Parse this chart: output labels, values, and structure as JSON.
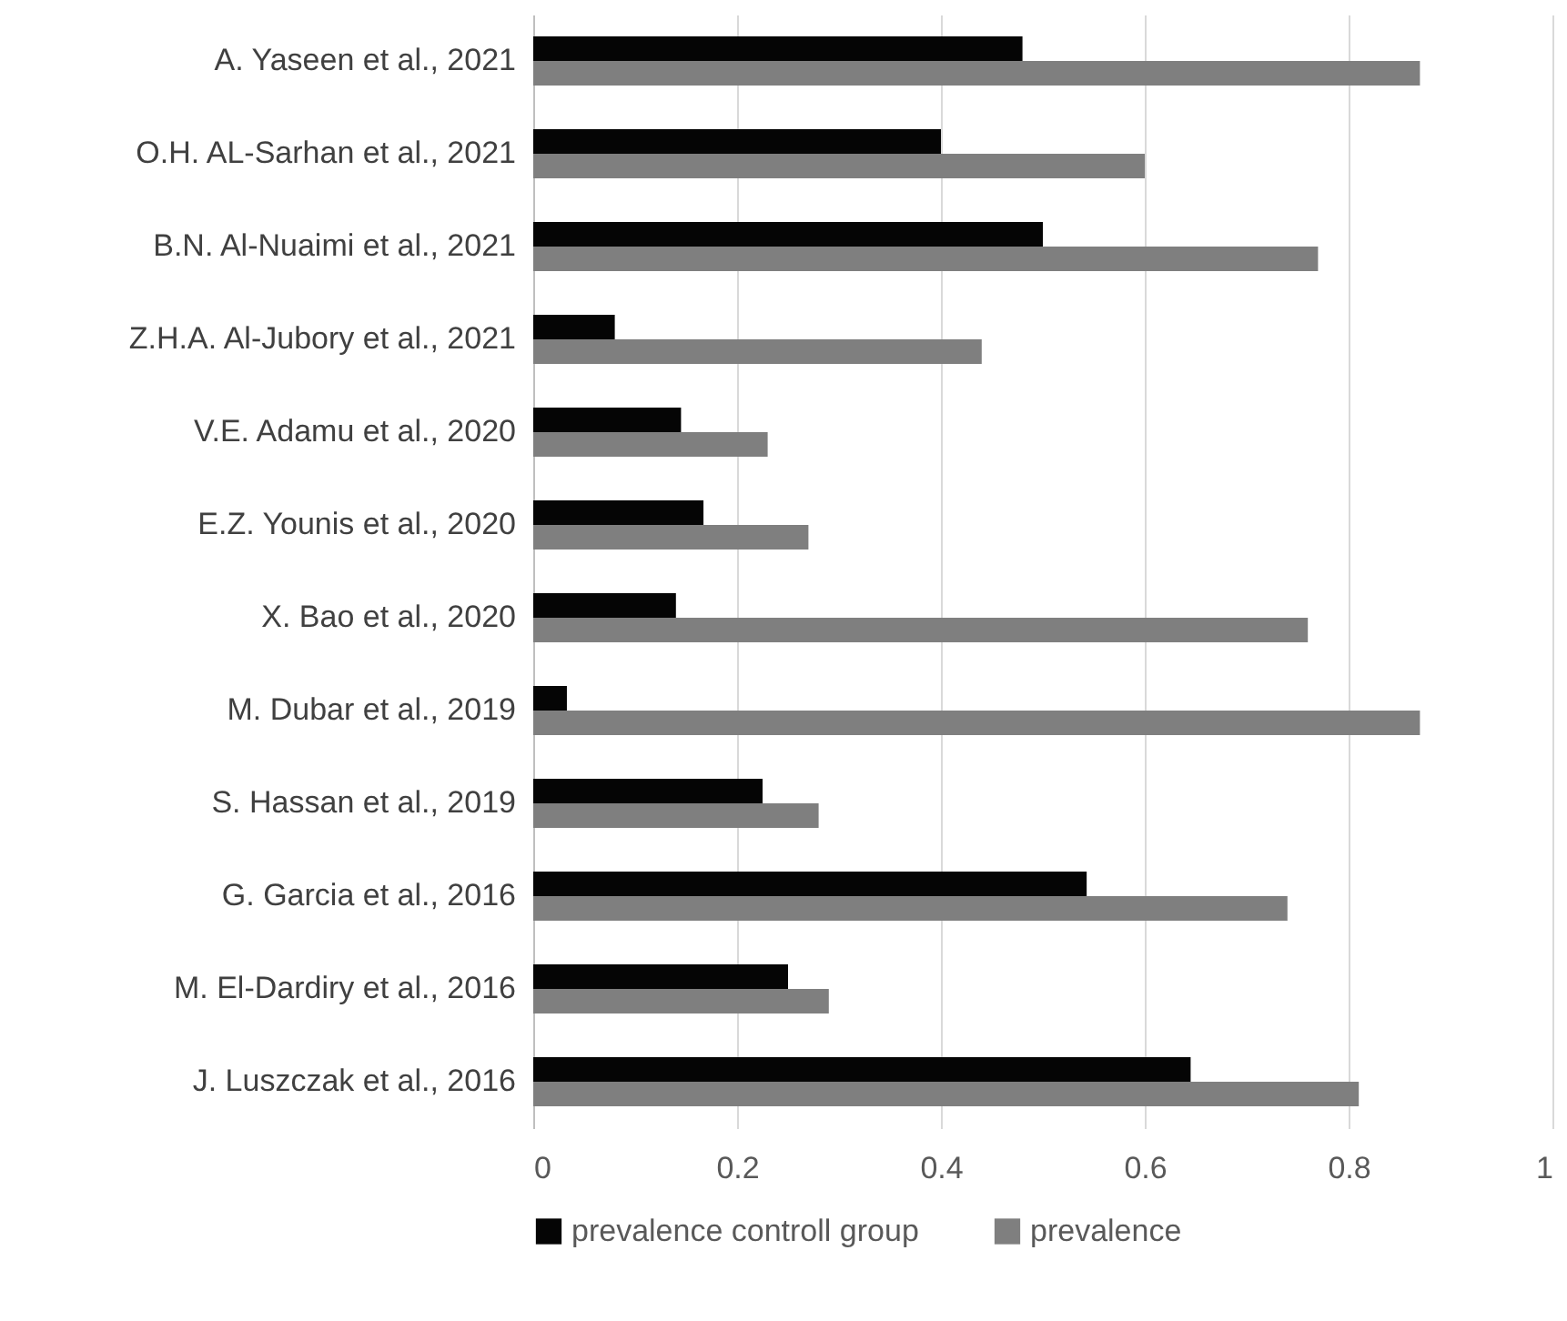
{
  "chart_data": {
    "type": "bar",
    "orientation": "horizontal",
    "categories": [
      "A. Yaseen et al., 2021",
      "O.H. AL-Sarhan et al., 2021",
      "B.N. Al-Nuaimi et al., 2021",
      "Z.H.A. Al-Jubory et al., 2021",
      "V.E. Adamu et al., 2020",
      "E.Z. Younis et al., 2020",
      "X. Bao et al., 2020",
      "M. Dubar et al., 2019",
      "S. Hassan et al., 2019",
      "G. Garcia et al., 2016",
      "M. El-Dardiry et al., 2016",
      "J. Luszczak et al., 2016"
    ],
    "series": [
      {
        "name": "prevalence controll group",
        "color": "#050505",
        "values": [
          0.48,
          0.4,
          0.5,
          0.08,
          0.145,
          0.167,
          0.14,
          0.033,
          0.225,
          0.543,
          0.25,
          0.645
        ]
      },
      {
        "name": "prevalence",
        "color": "#7f7f7f",
        "values": [
          0.87,
          0.6,
          0.77,
          0.44,
          0.23,
          0.27,
          0.76,
          0.87,
          0.28,
          0.74,
          0.29,
          0.81
        ]
      }
    ],
    "xlim": [
      0,
      1
    ],
    "xticks": [
      0,
      0.2,
      0.4,
      0.6,
      0.8,
      1
    ],
    "grid": "x",
    "legend": "bottom"
  }
}
